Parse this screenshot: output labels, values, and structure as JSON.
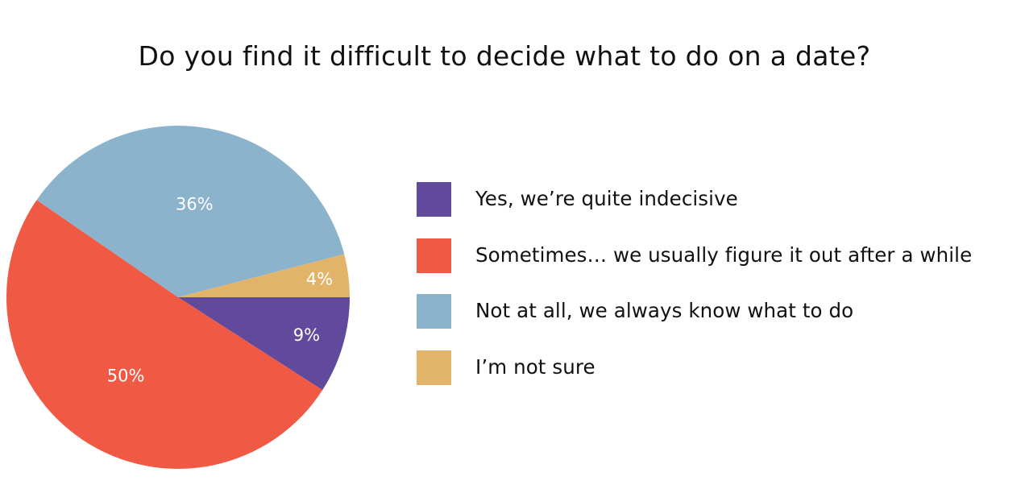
{
  "chart_data": {
    "type": "pie",
    "title": "Do you find it difficult to decide what to do on a date?",
    "slices": [
      {
        "label": "Yes, we’re quite indecisive",
        "value": 9,
        "value_label": "9%",
        "color": "#61499C"
      },
      {
        "label": "Sometimes… we usually figure it out after a while",
        "value": 50,
        "value_label": "50%",
        "color": "#F05A45"
      },
      {
        "label": "Not at all, we always know what to do",
        "value": 36,
        "value_label": "36%",
        "color": "#8BB3CC"
      },
      {
        "label": "I’m not sure",
        "value": 4,
        "value_label": "4%",
        "color": "#E2B46A"
      }
    ],
    "legend_position": "right"
  }
}
